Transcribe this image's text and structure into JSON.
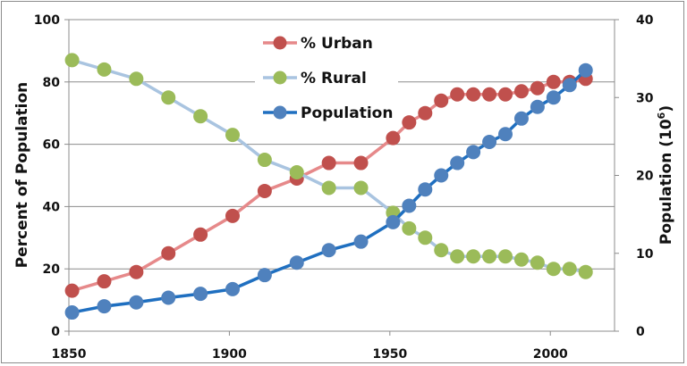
{
  "chart_data": {
    "type": "line",
    "x": [
      1851,
      1861,
      1871,
      1881,
      1891,
      1901,
      1911,
      1921,
      1931,
      1941,
      1951,
      1956,
      1961,
      1966,
      1971,
      1976,
      1981,
      1986,
      1991,
      1996,
      2001,
      2006,
      2011
    ],
    "series": [
      {
        "name": "% Urban",
        "axis": "left",
        "color": "#c0504d",
        "line_color": "#e6898a",
        "values": [
          13,
          16,
          19,
          25,
          31,
          37,
          45,
          49,
          54,
          54,
          62,
          67,
          70,
          74,
          76,
          76,
          76,
          76,
          77,
          78,
          80,
          80,
          81
        ]
      },
      {
        "name": "% Rural",
        "axis": "left",
        "color": "#9bbb59",
        "line_color": "#a9c4e0",
        "values": [
          87,
          84,
          81,
          75,
          69,
          63,
          55,
          51,
          46,
          46,
          38,
          33,
          30,
          26,
          24,
          24,
          24,
          24,
          23,
          22,
          20,
          20,
          19
        ]
      },
      {
        "name": "Population",
        "axis": "right",
        "color": "#4f81bd",
        "line_color": "#1f6fc0",
        "values": [
          2.4,
          3.2,
          3.7,
          4.3,
          4.8,
          5.4,
          7.2,
          8.8,
          10.4,
          11.5,
          14.0,
          16.1,
          18.2,
          20.0,
          21.6,
          23.0,
          24.3,
          25.3,
          27.3,
          28.8,
          30.0,
          31.6,
          33.5
        ]
      }
    ],
    "xlim": [
      1850,
      2020
    ],
    "xticks": [
      "1850",
      "1900",
      "1950",
      "2000"
    ],
    "ylim": [
      0,
      100
    ],
    "yticks": [
      "0",
      "20",
      "40",
      "60",
      "80",
      "100"
    ],
    "y2lim": [
      0,
      40
    ],
    "y2ticks": [
      "0",
      "10",
      "20",
      "30",
      "40"
    ],
    "ylabel": "Percent of Population",
    "y2label": "Population (10",
    "y2label_exponent": "6",
    "y2label_close": ")",
    "grid": true,
    "legend": "top-center"
  }
}
